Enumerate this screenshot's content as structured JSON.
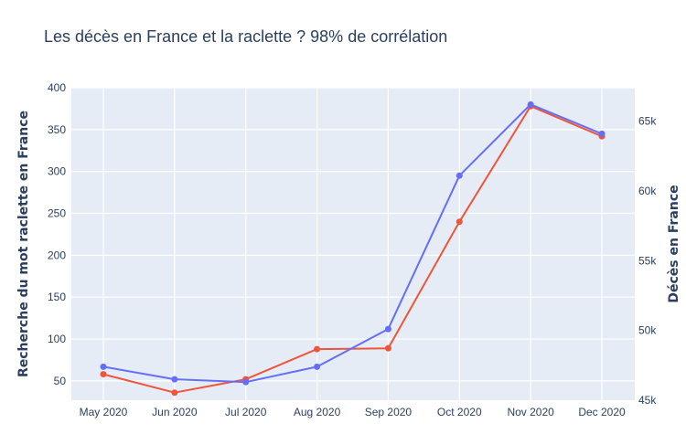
{
  "chart_data": {
    "type": "line",
    "title": "Les décès en France et la raclette ? 98% de corrélation",
    "categories": [
      "May 2020",
      "Jun 2020",
      "Jul 2020",
      "Aug 2020",
      "Sep 2020",
      "Oct 2020",
      "Nov 2020",
      "Dec 2020"
    ],
    "y_left": {
      "label": "Recherche du mot raclette en France",
      "range": [
        27,
        400
      ],
      "ticks": [
        50,
        100,
        150,
        200,
        250,
        300,
        350,
        400
      ],
      "tick_labels": [
        "50",
        "100",
        "150",
        "200",
        "250",
        "300",
        "350",
        "400"
      ]
    },
    "y_right": {
      "label": "Décès en France",
      "range": [
        45000,
        67400
      ],
      "ticks": [
        45000,
        50000,
        55000,
        60000,
        65000
      ],
      "tick_labels": [
        "45k",
        "50k",
        "55k",
        "60k",
        "65k"
      ]
    },
    "series": [
      {
        "axis": "left",
        "color": "#ef553b",
        "values": [
          58,
          36,
          52,
          88,
          89,
          240,
          378,
          342
        ]
      },
      {
        "axis": "right",
        "color": "#636efa",
        "values": [
          47400,
          46500,
          46300,
          47400,
          50100,
          61100,
          66200,
          64100
        ]
      }
    ],
    "grid": true,
    "background": "#e5ecf6"
  }
}
